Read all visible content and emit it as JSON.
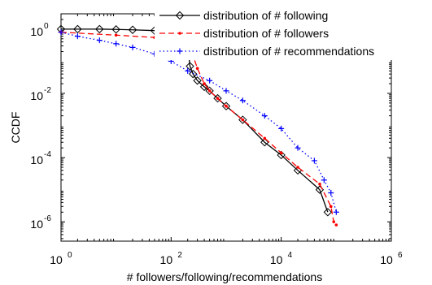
{
  "chart_data": {
    "type": "line",
    "xlabel": "# followers/following/recommendations",
    "ylabel": "CCDF",
    "x_scale": "log",
    "y_scale": "log",
    "xlim": [
      1,
      1000000
    ],
    "ylim": [
      2.5e-07,
      3
    ],
    "x_ticks": [
      {
        "base": "10",
        "exp": "0"
      },
      {
        "base": "10",
        "exp": "2"
      },
      {
        "base": "10",
        "exp": "4"
      },
      {
        "base": "10",
        "exp": "6"
      }
    ],
    "y_ticks": [
      {
        "base": "10",
        "exp": "0"
      },
      {
        "base": "10",
        "exp": "-2"
      },
      {
        "base": "10",
        "exp": "-4"
      },
      {
        "base": "10",
        "exp": "-6"
      }
    ],
    "grid": false,
    "legend_position": "top-right",
    "series": [
      {
        "name": "distribution of # following",
        "color": "#000000",
        "line_style": "solid",
        "marker": "diamond",
        "x": [
          1,
          2,
          5,
          10,
          20,
          50,
          100,
          150,
          180,
          200,
          220,
          250,
          300,
          400,
          500,
          700,
          1000,
          2000,
          5000,
          10000,
          20000,
          50000,
          70000
        ],
        "y": [
          1.0,
          1.0,
          1.0,
          0.98,
          0.95,
          0.9,
          0.85,
          0.8,
          0.7,
          0.3,
          0.07,
          0.04,
          0.025,
          0.016,
          0.012,
          0.007,
          0.004,
          0.0015,
          0.0003,
          0.00012,
          4e-05,
          1e-05,
          2e-06
        ]
      },
      {
        "name": "distribution of # followers",
        "color": "#ff0000",
        "line_style": "dashed",
        "marker": "dot",
        "x": [
          1,
          10,
          50,
          100,
          150,
          200,
          250,
          300,
          400,
          500,
          700,
          1000,
          2000,
          5000,
          10000,
          20000,
          50000,
          80000,
          90000,
          100000
        ],
        "y": [
          0.8,
          0.65,
          0.55,
          0.45,
          0.35,
          0.25,
          0.15,
          0.06,
          0.02,
          0.012,
          0.007,
          0.004,
          0.0015,
          0.0004,
          0.00014,
          5e-05,
          1.5e-05,
          3e-06,
          1e-06,
          8e-07
        ]
      },
      {
        "name": "distribution of # recommendations",
        "color": "#0000ff",
        "line_style": "dotted",
        "marker": "plus",
        "x": [
          1,
          2,
          5,
          10,
          20,
          50,
          100,
          200,
          500,
          1000,
          2000,
          5000,
          10000,
          20000,
          40000,
          60000,
          80000,
          100000
        ],
        "y": [
          0.8,
          0.6,
          0.45,
          0.35,
          0.27,
          0.17,
          0.1,
          0.05,
          0.025,
          0.012,
          0.006,
          0.002,
          0.0008,
          0.0002,
          8e-05,
          2e-05,
          8e-06,
          2e-06
        ]
      }
    ]
  }
}
